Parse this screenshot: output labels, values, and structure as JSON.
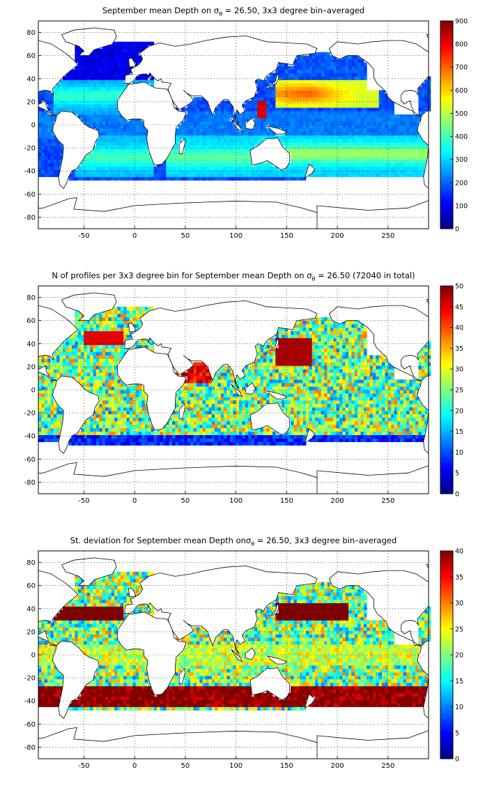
{
  "panels": [
    {
      "id": "depth",
      "title_pre": "September mean Depth on ",
      "title_sigma": "σ",
      "title_sub": "θ",
      "title_post": " = 26.50, 3x3 degree bin–averaged",
      "colorbar": {
        "min": 0,
        "max": 900,
        "ticks": [
          "0",
          "100",
          "200",
          "300",
          "400",
          "500",
          "600",
          "700",
          "800",
          "900"
        ]
      },
      "field": "depth"
    },
    {
      "id": "count",
      "title_pre": "N of profiles per 3x3 degree bin for September mean Depth on ",
      "title_sigma": "σ",
      "title_sub": "θ",
      "title_post": " = 26.50 (72040 in total)",
      "colorbar": {
        "min": 0,
        "max": 50,
        "ticks": [
          "0",
          "5",
          "10",
          "15",
          "20",
          "25",
          "30",
          "35",
          "40",
          "45",
          "50"
        ]
      },
      "field": "count"
    },
    {
      "id": "stdev",
      "title_pre": "St. deviation for September mean Depth on",
      "title_sigma": "σ",
      "title_sub": "θ",
      "title_post": " = 26.50, 3x3 degree bin–averaged",
      "colorbar": {
        "min": 0,
        "max": 40,
        "ticks": [
          "0",
          "5",
          "10",
          "15",
          "20",
          "25",
          "30",
          "35",
          "40"
        ]
      },
      "field": "stdev"
    }
  ],
  "axes": {
    "xlim": [
      -95,
      290
    ],
    "ylim": [
      -90,
      90
    ],
    "xticks": [
      "-50",
      "0",
      "50",
      "100",
      "150",
      "200",
      "250"
    ],
    "xtick_values": [
      -50,
      0,
      50,
      100,
      150,
      200,
      250
    ],
    "yticks": [
      "80",
      "60",
      "40",
      "20",
      "0",
      "-20",
      "-40",
      "-60",
      "-80"
    ],
    "ytick_values": [
      80,
      60,
      40,
      20,
      0,
      -20,
      -40,
      -60,
      -80
    ],
    "grid": "dotted"
  },
  "colormap": "jet",
  "bin_size_degrees": 3
}
